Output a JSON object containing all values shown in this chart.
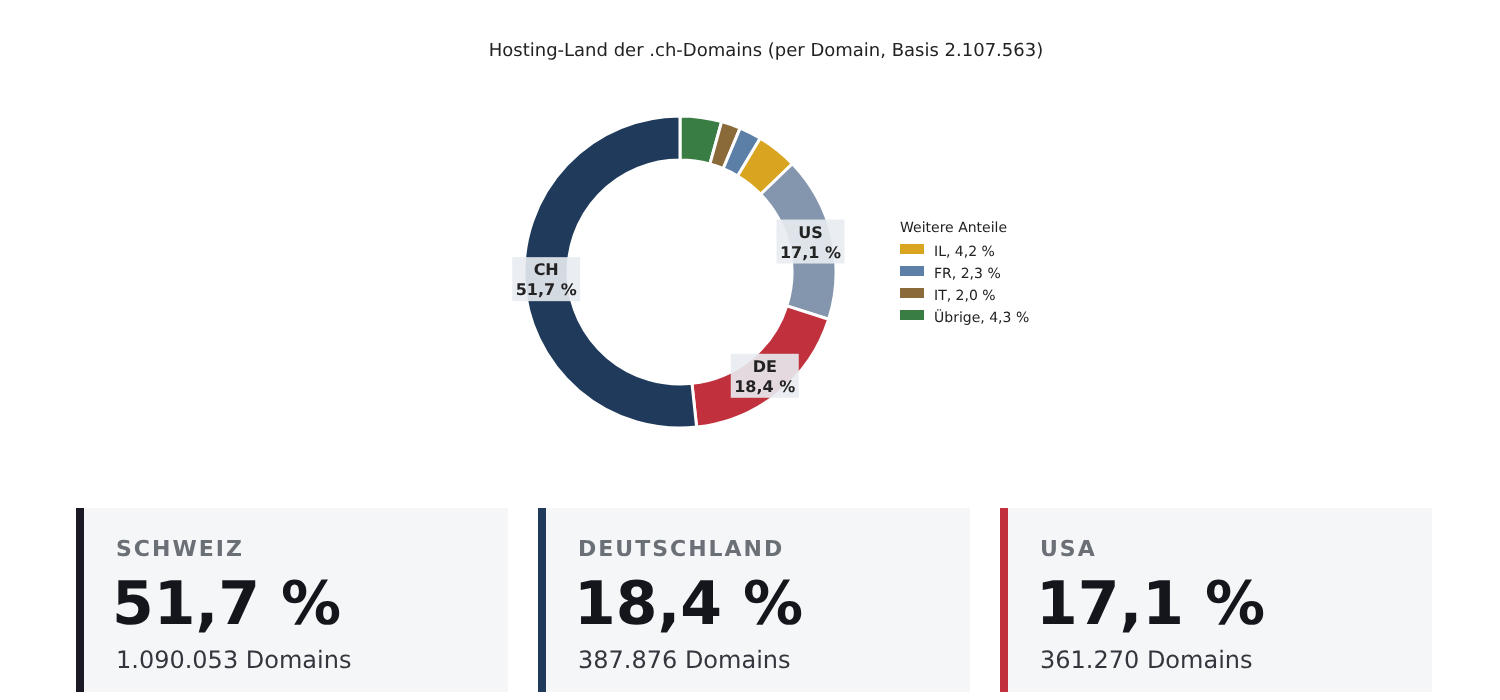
{
  "chart_data": [
    {
      "type": "donut",
      "title": "Hosting-Land der .ch-Domains (per Domain, Basis 2.107.563)",
      "legend_title": "Weitere Anteile",
      "legend": "right",
      "categories": [
        "Übrige",
        "IT",
        "FR",
        "IL",
        "US",
        "DE",
        "CH"
      ],
      "values": [
        4.3,
        2.0,
        2.3,
        4.2,
        17.1,
        18.4,
        51.7
      ],
      "value_labels": [
        "4,3 %",
        "2,0 %",
        "2,3 %",
        "4,2 %",
        "17,1 %",
        "18,4 %",
        "51,7 %"
      ],
      "colors": [
        "#3a7d44",
        "#8b6a3a",
        "#5b7fa6",
        "#d9a520",
        "#8496ad",
        "#c0313d",
        "#1f3a5a"
      ]
    },
    {
      "type": "other",
      "title": "SCHWEIZ",
      "annotations": [
        "51,7 %",
        "1.090.053 Domains"
      ],
      "color": "#1a1a24"
    },
    {
      "type": "other",
      "title": "DEUTSCHLAND",
      "annotations": [
        "18,4 %",
        "387.876 Domains"
      ],
      "color": "#1f3a5a"
    },
    {
      "type": "other",
      "title": "USA",
      "annotations": [
        "17,1 %",
        "361.270 Domains"
      ],
      "color": "#c0313d"
    }
  ]
}
